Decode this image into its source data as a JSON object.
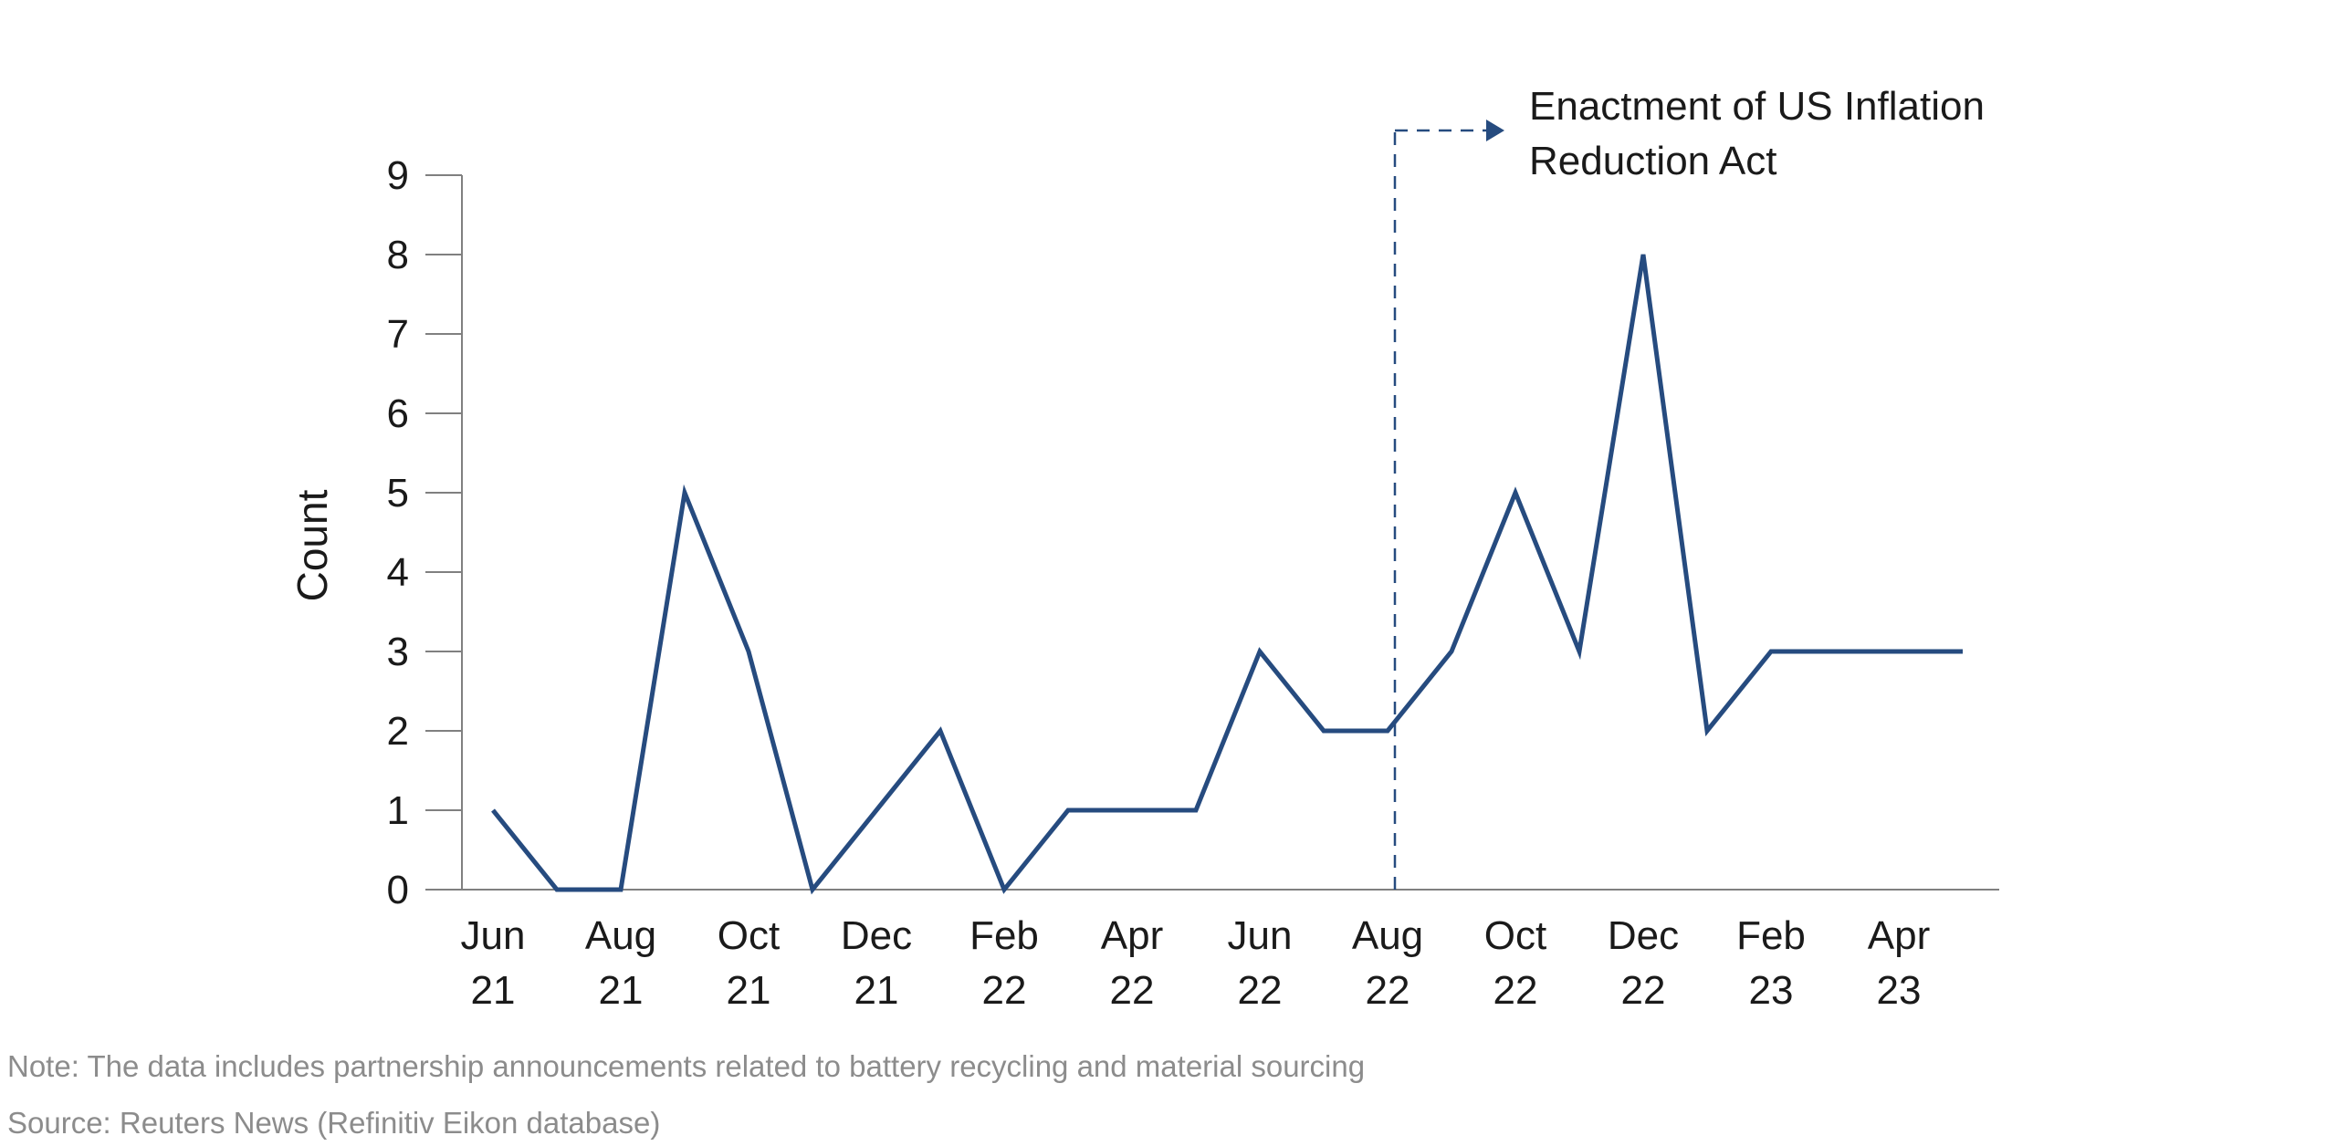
{
  "chart_data": {
    "type": "line",
    "title": "",
    "xlabel": "",
    "ylabel": "Count",
    "ylim": [
      0,
      9
    ],
    "yticks": [
      0,
      1,
      2,
      3,
      4,
      5,
      6,
      7,
      8,
      9
    ],
    "x": [
      "Jun 21",
      "Jul 21",
      "Aug 21",
      "Sep 21",
      "Oct 21",
      "Nov 21",
      "Dec 21",
      "Jan 22",
      "Feb 22",
      "Mar 22",
      "Apr 22",
      "May 22",
      "Jun 22",
      "Jul 22",
      "Aug 22",
      "Sep 22",
      "Oct 22",
      "Nov 22",
      "Dec 22",
      "Jan 23",
      "Feb 23",
      "Mar 23",
      "Apr 23",
      "May 23"
    ],
    "tick_labels": [
      {
        "month": "Jun",
        "year": "21"
      },
      {
        "month": "Aug",
        "year": "21"
      },
      {
        "month": "Oct",
        "year": "21"
      },
      {
        "month": "Dec",
        "year": "21"
      },
      {
        "month": "Feb",
        "year": "22"
      },
      {
        "month": "Apr",
        "year": "22"
      },
      {
        "month": "Jun",
        "year": "22"
      },
      {
        "month": "Aug",
        "year": "22"
      },
      {
        "month": "Oct",
        "year": "22"
      },
      {
        "month": "Dec",
        "year": "22"
      },
      {
        "month": "Feb",
        "year": "23"
      },
      {
        "month": "Apr",
        "year": "23"
      }
    ],
    "series": [
      {
        "name": "Count",
        "values": [
          1,
          0,
          0,
          5,
          3,
          0,
          1,
          2,
          0,
          1,
          1,
          1,
          3,
          2,
          2,
          3,
          5,
          3,
          8,
          2,
          3,
          3,
          3,
          3
        ]
      }
    ],
    "annotation": {
      "at": "Aug 22",
      "text_lines": [
        "Enactment of US Inflation",
        "Reduction Act"
      ]
    },
    "grid": false
  },
  "footnotes": {
    "note": "Note: The data includes partnership announcements related to battery recycling and material sourcing",
    "source": "Source: Reuters News (Refinitiv Eikon database)"
  },
  "colors": {
    "series": "#264b7f",
    "axis": "#808080",
    "text": "#1a1a1a",
    "footnote": "#8c8c8c"
  }
}
